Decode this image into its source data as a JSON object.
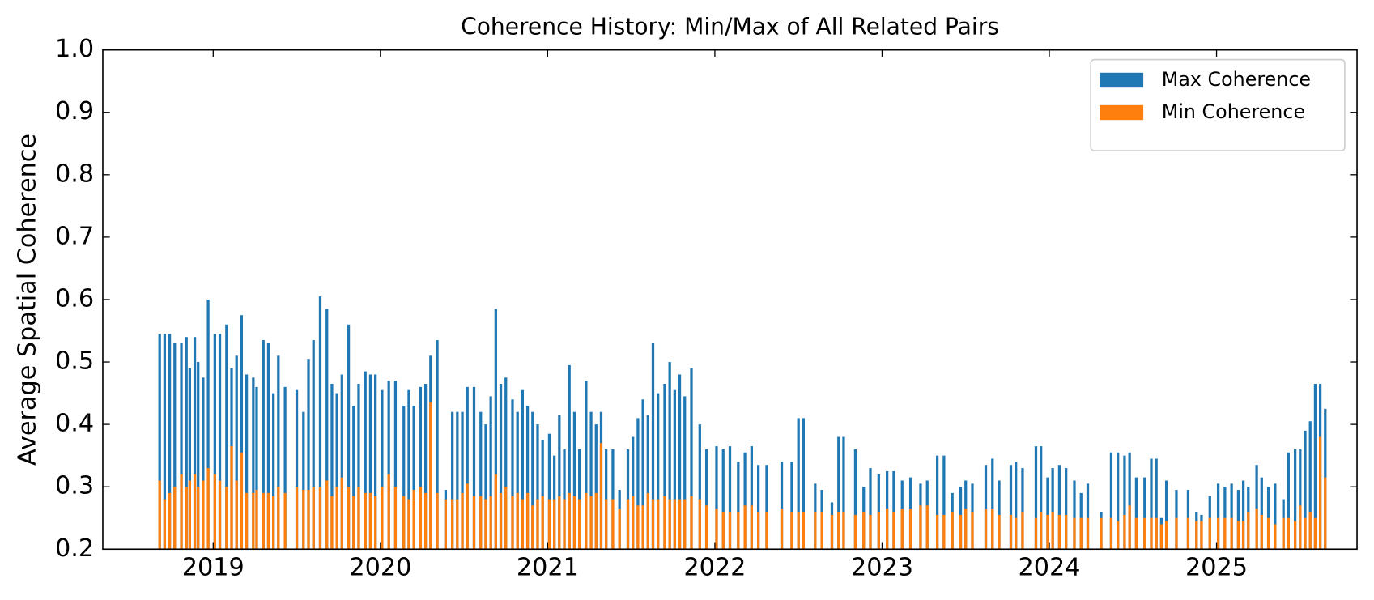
{
  "chart_data": {
    "type": "bar",
    "title": "Coherence History: Min/Max of All Related Pairs",
    "y_label": "Average Spatial Coherence",
    "x": [
      2018.68,
      2018.71,
      2018.74,
      2018.77,
      2018.81,
      2018.84,
      2018.86,
      2018.89,
      2018.91,
      2018.94,
      2018.97,
      2019.01,
      2019.04,
      2019.08,
      2019.11,
      2019.14,
      2019.17,
      2019.2,
      2019.24,
      2019.26,
      2019.3,
      2019.33,
      2019.36,
      2019.39,
      2019.43,
      2019.5,
      2019.54,
      2019.57,
      2019.6,
      2019.64,
      2019.68,
      2019.71,
      2019.74,
      2019.77,
      2019.81,
      2019.84,
      2019.87,
      2019.91,
      2019.94,
      2019.97,
      2020.01,
      2020.05,
      2020.09,
      2020.14,
      2020.17,
      2020.2,
      2020.24,
      2020.27,
      2020.3,
      2020.34,
      2020.39,
      2020.43,
      2020.46,
      2020.49,
      2020.52,
      2020.56,
      2020.6,
      2020.63,
      2020.66,
      2020.69,
      2020.72,
      2020.75,
      2020.79,
      2020.82,
      2020.85,
      2020.88,
      2020.91,
      2020.94,
      2020.97,
      2021.01,
      2021.04,
      2021.07,
      2021.1,
      2021.13,
      2021.16,
      2021.19,
      2021.23,
      2021.26,
      2021.29,
      2021.32,
      2021.35,
      2021.39,
      2021.43,
      2021.48,
      2021.51,
      2021.54,
      2021.57,
      2021.6,
      2021.63,
      2021.66,
      2021.7,
      2021.73,
      2021.76,
      2021.79,
      2021.82,
      2021.86,
      2021.91,
      2021.95,
      2022.01,
      2022.05,
      2022.09,
      2022.14,
      2022.18,
      2022.22,
      2022.26,
      2022.31,
      2022.4,
      2022.46,
      2022.5,
      2022.53,
      2022.6,
      2022.64,
      2022.7,
      2022.74,
      2022.77,
      2022.84,
      2022.89,
      2022.93,
      2022.98,
      2023.03,
      2023.07,
      2023.12,
      2023.17,
      2023.23,
      2023.27,
      2023.33,
      2023.37,
      2023.42,
      2023.47,
      2023.5,
      2023.54,
      2023.62,
      2023.66,
      2023.7,
      2023.77,
      2023.8,
      2023.84,
      2023.92,
      2023.95,
      2023.99,
      2024.02,
      2024.06,
      2024.1,
      2024.15,
      2024.19,
      2024.23,
      2024.31,
      2024.37,
      2024.41,
      2024.45,
      2024.48,
      2024.52,
      2024.57,
      2024.61,
      2024.64,
      2024.67,
      2024.7,
      2024.76,
      2024.83,
      2024.88,
      2024.91,
      2024.96,
      2025.01,
      2025.05,
      2025.09,
      2025.13,
      2025.16,
      2025.19,
      2025.24,
      2025.27,
      2025.31,
      2025.35,
      2025.4,
      2025.43,
      2025.47,
      2025.5,
      2025.53,
      2025.56,
      2025.59,
      2025.62,
      2025.65
    ],
    "series": [
      {
        "name": "Max Coherence",
        "color": "#1f77b4",
        "values": [
          0.545,
          0.545,
          0.545,
          0.53,
          0.53,
          0.54,
          0.49,
          0.54,
          0.5,
          0.475,
          0.6,
          0.545,
          0.545,
          0.56,
          0.49,
          0.51,
          0.575,
          0.48,
          0.475,
          0.46,
          0.535,
          0.53,
          0.45,
          0.51,
          0.46,
          0.455,
          0.42,
          0.505,
          0.535,
          0.605,
          0.585,
          0.465,
          0.45,
          0.48,
          0.56,
          0.43,
          0.465,
          0.485,
          0.48,
          0.48,
          0.455,
          0.47,
          0.47,
          0.43,
          0.455,
          0.43,
          0.46,
          0.465,
          0.51,
          0.535,
          0.295,
          0.42,
          0.42,
          0.42,
          0.46,
          0.46,
          0.42,
          0.4,
          0.445,
          0.585,
          0.465,
          0.475,
          0.44,
          0.42,
          0.455,
          0.43,
          0.42,
          0.4,
          0.375,
          0.385,
          0.35,
          0.415,
          0.36,
          0.495,
          0.42,
          0.36,
          0.47,
          0.42,
          0.4,
          0.42,
          0.36,
          0.36,
          0.295,
          0.36,
          0.38,
          0.41,
          0.44,
          0.415,
          0.53,
          0.45,
          0.465,
          0.5,
          0.455,
          0.48,
          0.445,
          0.49,
          0.4,
          0.36,
          0.365,
          0.36,
          0.365,
          0.34,
          0.355,
          0.365,
          0.335,
          0.335,
          0.34,
          0.34,
          0.41,
          0.41,
          0.305,
          0.295,
          0.275,
          0.38,
          0.38,
          0.36,
          0.3,
          0.33,
          0.32,
          0.325,
          0.325,
          0.31,
          0.315,
          0.305,
          0.31,
          0.35,
          0.35,
          0.29,
          0.3,
          0.31,
          0.305,
          0.335,
          0.345,
          0.31,
          0.335,
          0.34,
          0.33,
          0.365,
          0.365,
          0.315,
          0.33,
          0.335,
          0.33,
          0.31,
          0.29,
          0.305,
          0.26,
          0.355,
          0.355,
          0.35,
          0.355,
          0.315,
          0.315,
          0.345,
          0.345,
          0.25,
          0.31,
          0.295,
          0.295,
          0.26,
          0.255,
          0.285,
          0.305,
          0.3,
          0.305,
          0.295,
          0.31,
          0.3,
          0.335,
          0.315,
          0.3,
          0.305,
          0.28,
          0.355,
          0.36,
          0.36,
          0.39,
          0.405,
          0.465,
          0.465,
          0.425
        ]
      },
      {
        "name": "Min Coherence",
        "color": "#ff7f0e",
        "values": [
          0.31,
          0.28,
          0.29,
          0.3,
          0.32,
          0.3,
          0.31,
          0.32,
          0.3,
          0.31,
          0.33,
          0.32,
          0.31,
          0.3,
          0.365,
          0.31,
          0.355,
          0.29,
          0.29,
          0.295,
          0.29,
          0.29,
          0.285,
          0.3,
          0.29,
          0.3,
          0.295,
          0.295,
          0.3,
          0.3,
          0.31,
          0.285,
          0.3,
          0.315,
          0.3,
          0.285,
          0.3,
          0.29,
          0.29,
          0.285,
          0.3,
          0.32,
          0.3,
          0.285,
          0.28,
          0.295,
          0.3,
          0.29,
          0.435,
          0.29,
          0.28,
          0.28,
          0.28,
          0.29,
          0.305,
          0.285,
          0.285,
          0.28,
          0.285,
          0.32,
          0.29,
          0.3,
          0.285,
          0.29,
          0.28,
          0.29,
          0.27,
          0.28,
          0.285,
          0.28,
          0.28,
          0.285,
          0.28,
          0.29,
          0.285,
          0.28,
          0.29,
          0.285,
          0.29,
          0.37,
          0.28,
          0.28,
          0.265,
          0.28,
          0.285,
          0.27,
          0.27,
          0.29,
          0.28,
          0.28,
          0.285,
          0.28,
          0.28,
          0.28,
          0.28,
          0.285,
          0.28,
          0.27,
          0.265,
          0.26,
          0.26,
          0.26,
          0.27,
          0.27,
          0.26,
          0.26,
          0.265,
          0.26,
          0.26,
          0.26,
          0.26,
          0.26,
          0.255,
          0.26,
          0.26,
          0.255,
          0.26,
          0.255,
          0.26,
          0.265,
          0.26,
          0.265,
          0.265,
          0.27,
          0.27,
          0.255,
          0.255,
          0.26,
          0.255,
          0.265,
          0.26,
          0.265,
          0.265,
          0.255,
          0.255,
          0.25,
          0.26,
          0.25,
          0.26,
          0.255,
          0.26,
          0.255,
          0.255,
          0.25,
          0.25,
          0.25,
          0.25,
          0.25,
          0.245,
          0.255,
          0.27,
          0.25,
          0.25,
          0.25,
          0.25,
          0.24,
          0.245,
          0.25,
          0.25,
          0.245,
          0.245,
          0.25,
          0.25,
          0.25,
          0.25,
          0.245,
          0.245,
          0.26,
          0.265,
          0.255,
          0.25,
          0.24,
          0.25,
          0.25,
          0.245,
          0.27,
          0.25,
          0.26,
          0.25,
          0.38,
          0.315
        ]
      }
    ],
    "xlim": [
      2018.34,
      2025.84
    ],
    "xticks": [
      2019,
      2020,
      2021,
      2022,
      2023,
      2024,
      2025
    ],
    "ylim": [
      0.2,
      1
    ],
    "yticks": [
      0.2,
      0.3,
      0.4,
      0.5,
      0.6,
      0.7,
      0.8,
      0.9,
      {
        "value": 1,
        "label": "1.0"
      }
    ],
    "legend": "upper right",
    "grid": false
  }
}
